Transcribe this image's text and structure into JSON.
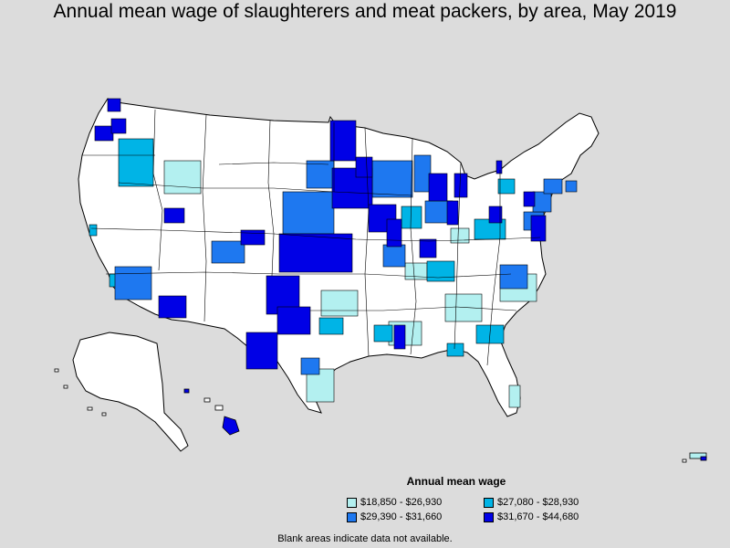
{
  "title": "Annual mean wage of slaughterers and meat packers, by area, May 2019",
  "legend": {
    "title": "Annual mean wage",
    "items": [
      {
        "label": "$18,850 - $26,930",
        "color": "#b3f0f0"
      },
      {
        "label": "$27,080 - $28,930",
        "color": "#00b4e6"
      },
      {
        "label": "$29,390 - $31,660",
        "color": "#1e78f0"
      },
      {
        "label": "$31,670 - $44,680",
        "color": "#0000e6"
      }
    ]
  },
  "note": "Blank areas indicate data not available.",
  "colors": {
    "background": "#dcdcdc",
    "no_data": "#ffffff",
    "border": "#000000"
  }
}
